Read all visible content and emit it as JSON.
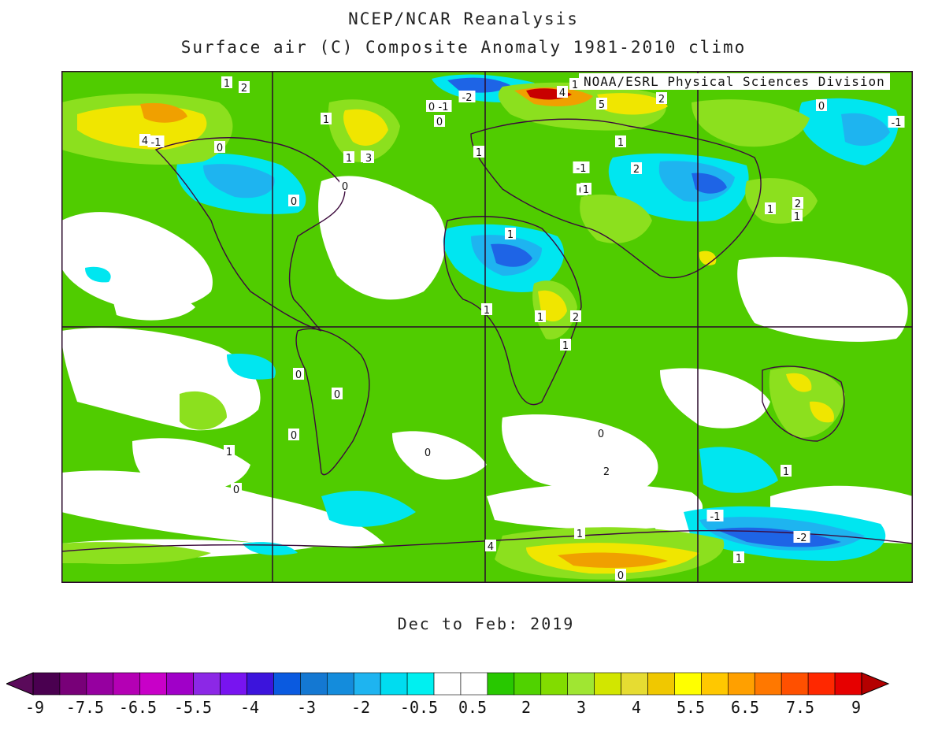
{
  "header": {
    "title": "NCEP/NCAR Reanalysis",
    "subtitle": "Surface air (C) Composite Anomaly 1981-2010 climo"
  },
  "map": {
    "credit": "NOAA/ESRL Physical Sciences Division",
    "period": "Dec to Feb: 2019",
    "contour_labels": [
      "1",
      "2",
      "-2",
      "4",
      "1",
      "5",
      "2",
      "0",
      "-1",
      "1",
      "0",
      "1",
      "1",
      "-1",
      "4",
      "2",
      "0",
      "1",
      "3",
      "2",
      "-1",
      "0",
      "1",
      "1",
      "2",
      "1",
      "0",
      "-1",
      "0",
      "0",
      "1",
      "1",
      "2",
      "1",
      "1",
      "0",
      "0",
      "0",
      "0",
      "1",
      "2",
      "1",
      "0",
      "-1",
      "-2",
      "1",
      "4",
      "1",
      "0",
      "0",
      "0"
    ]
  },
  "colorbar": {
    "colors": [
      "#4a0050",
      "#780078",
      "#9600a0",
      "#b400b4",
      "#c800c8",
      "#a000c8",
      "#8c28e6",
      "#7814f0",
      "#3c14dc",
      "#0a5ae0",
      "#1478d2",
      "#148cdc",
      "#1eb4f0",
      "#00dcf0",
      "#00f0f0",
      "#ffffff",
      "#ffffff",
      "#28c800",
      "#50d200",
      "#82dc00",
      "#a0e632",
      "#d2e600",
      "#e6dc32",
      "#f0c800",
      "#ffff00",
      "#ffc800",
      "#ffa000",
      "#ff7800",
      "#ff5000",
      "#ff2800",
      "#e60000"
    ],
    "tick_labels": [
      "-9",
      "-7.5",
      "-6.5",
      "-5.5",
      "-4",
      "-3",
      "-2",
      "-0.5",
      "0.5",
      "2",
      "3",
      "4",
      "5.5",
      "6.5",
      "7.5",
      "9"
    ],
    "left_arrow_color": "#5a0a5a",
    "right_arrow_color": "#b40000"
  },
  "palette": {
    "green": "#50cc00",
    "light_green": "#8ce01e",
    "cyan": "#00e6f0",
    "light_blue": "#1eb4f0",
    "blue": "#1e64e6",
    "yellow": "#f0e600",
    "orange": "#f0a000",
    "red": "#c80000",
    "land_outline": "#3c0a3c"
  }
}
